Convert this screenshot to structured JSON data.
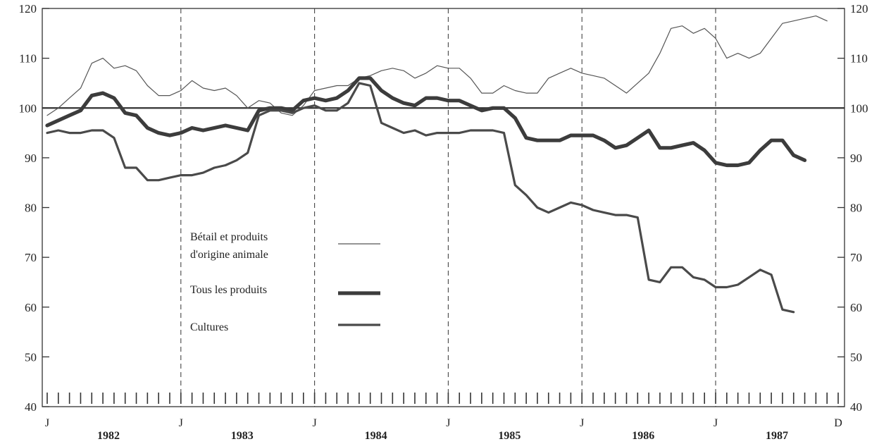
{
  "chart_data": {
    "type": "line",
    "ylim": [
      40,
      120
    ],
    "yticks": [
      "40",
      "50",
      "60",
      "70",
      "80",
      "90",
      "100",
      "110",
      "120"
    ],
    "reference_line": 100,
    "month_markers": [
      "J",
      "J",
      "J",
      "J",
      "J",
      "J",
      "D"
    ],
    "years": [
      "1982",
      "1983",
      "1984",
      "1985",
      "1986",
      "1987"
    ],
    "grid": "dashed vertical lines at each January",
    "legend_position": "center-left",
    "series": [
      {
        "name": "Bétail et produits d'origine animale",
        "name_lines": [
          "Bétail et produits",
          "d'origine animale"
        ],
        "color": "#555555",
        "style": "thin",
        "values": [
          98.5,
          100,
          102,
          104,
          109,
          110,
          108,
          108.5,
          107.5,
          104.5,
          102.5,
          102.5,
          103.5,
          105.5,
          104,
          103.5,
          104,
          102.5,
          100,
          101.5,
          101,
          99,
          98.5,
          100.5,
          103.5,
          104,
          104.5,
          104.5,
          106,
          106.5,
          107.5,
          108,
          107.5,
          106,
          107,
          108.5,
          108,
          108,
          106,
          103,
          103,
          104.5,
          103.5,
          103,
          103,
          106,
          107,
          108,
          107,
          106.5,
          106,
          104.5,
          103,
          105,
          107,
          111,
          116,
          116.5,
          115,
          116,
          114,
          110,
          111,
          110,
          111,
          114,
          117,
          117.5,
          118,
          118.5,
          117.5
        ]
      },
      {
        "name": "Tous les produits",
        "name_lines": [
          "Tous les produits"
        ],
        "color": "#3c3c3c",
        "style": "thick",
        "values": [
          96.5,
          97.5,
          98.5,
          99.5,
          102.5,
          103,
          102,
          99,
          98.5,
          96,
          95,
          94.5,
          95,
          96,
          95.5,
          96,
          96.5,
          96,
          95.5,
          99.5,
          100,
          100,
          99.5,
          101.5,
          102,
          101.5,
          102,
          103.5,
          106,
          106,
          103.5,
          102,
          101,
          100.5,
          102,
          102,
          101.5,
          101.5,
          100.5,
          99.5,
          100,
          100,
          98,
          94,
          93.5,
          93.5,
          93.5,
          94.5,
          94.5,
          94.5,
          93.5,
          92,
          92.5,
          94,
          95.5,
          92,
          92,
          92.5,
          93,
          91.5,
          89,
          88.5,
          88.5,
          89,
          91.5,
          93.5,
          93.5,
          90.5,
          89.5
        ]
      },
      {
        "name": "Cultures",
        "name_lines": [
          "Cultures"
        ],
        "color": "#4a4a4a",
        "style": "medium",
        "values": [
          95,
          95.5,
          95,
          95,
          95.5,
          95.5,
          94,
          88,
          88,
          85.5,
          85.5,
          86,
          86.5,
          86.5,
          87,
          88,
          88.5,
          89.5,
          91,
          98.5,
          99.5,
          99.5,
          99,
          100,
          100.5,
          99.5,
          99.5,
          101,
          105,
          104.5,
          97,
          96,
          95,
          95.5,
          94.5,
          95,
          95,
          95,
          95.5,
          95.5,
          95.5,
          95,
          84.5,
          82.5,
          80,
          79,
          80,
          81,
          80.5,
          79.5,
          79,
          78.5,
          78.5,
          78,
          65.5,
          65,
          68,
          68,
          66,
          65.5,
          64,
          64,
          64.5,
          66,
          67.5,
          66.5,
          59.5,
          59
        ]
      }
    ]
  }
}
